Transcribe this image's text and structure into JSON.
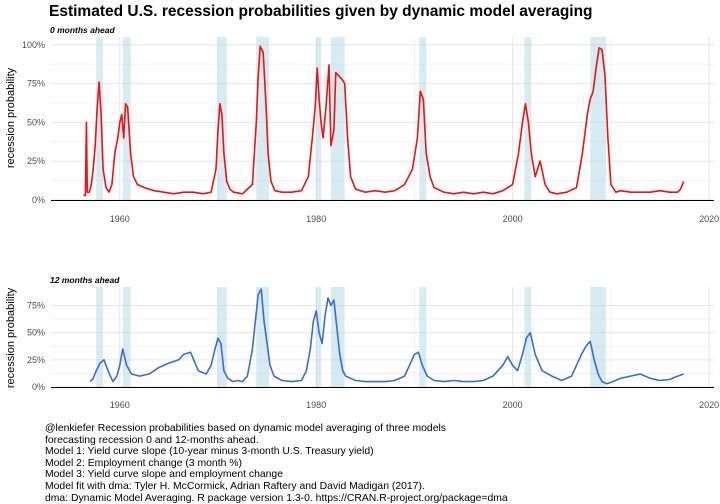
{
  "title": "Estimated U.S. recession probabilities given by dynamic model averaging",
  "caption": [
    "@lenkiefer Recession probabilities based on dynamic model averaging of three models",
    "forecasting recession 0 and 12-months ahead.",
    "Model 1: Yield curve slope (10-year minus 3-month U.S. Treasury yield)",
    "Model 2: Employment change (3 month %)",
    "Model 3: Yield curve slope and employment change",
    "Model fit with dma: Tyler H. McCormick, Adrian Raftery and David Madigan (2017).",
    "dma: Dynamic Model Averaging. R package version 1.3-0. https://CRAN.R-project.org/package=dma"
  ],
  "chart_data": [
    {
      "type": "line",
      "subtitle": "0 months ahead",
      "xlabel": "",
      "ylabel": "recession probability",
      "xlim": [
        1953,
        2020.5
      ],
      "ylim": [
        0,
        1.05
      ],
      "xticks": [
        1960,
        1980,
        2000,
        2020
      ],
      "yticks": [
        0,
        0.25,
        0.5,
        0.75,
        1.0
      ],
      "ytick_labels": [
        "0%",
        "25%",
        "50%",
        "75%",
        "100%"
      ],
      "grid": true,
      "color": "#ee1111",
      "recession_shading": [
        [
          1957.6,
          1958.3
        ],
        [
          1960.3,
          1961.1
        ],
        [
          1969.9,
          1970.9
        ],
        [
          1973.9,
          1975.2
        ],
        [
          1980.0,
          1980.5
        ],
        [
          1981.5,
          1982.9
        ],
        [
          1990.5,
          1991.2
        ],
        [
          2001.2,
          2001.9
        ],
        [
          2007.9,
          2009.5
        ]
      ],
      "series": [
        {
          "x": [
            1956.3,
            1956.5,
            1956.6,
            1956.7,
            1956.9,
            1957.1,
            1957.3,
            1957.5,
            1957.7,
            1957.9,
            1958.1,
            1958.3,
            1958.6,
            1958.9,
            1959.2,
            1959.5,
            1959.8,
            1960.0,
            1960.2,
            1960.4,
            1960.6,
            1960.8,
            1961.1,
            1961.4,
            1961.8,
            1962.5,
            1963.5,
            1964.5,
            1965.5,
            1966.5,
            1967.5,
            1968.5,
            1969.3,
            1969.8,
            1970.0,
            1970.2,
            1970.4,
            1970.6,
            1970.9,
            1971.2,
            1971.6,
            1972.5,
            1973.5,
            1973.9,
            1974.1,
            1974.3,
            1974.6,
            1974.9,
            1975.1,
            1975.4,
            1975.8,
            1976.5,
            1977.5,
            1978.5,
            1979.2,
            1979.6,
            1979.9,
            1980.1,
            1980.3,
            1980.5,
            1980.7,
            1981.0,
            1981.3,
            1981.5,
            1981.8,
            1982.0,
            1982.3,
            1982.6,
            1982.9,
            1983.2,
            1983.5,
            1984.0,
            1985.0,
            1986.0,
            1987.0,
            1988.0,
            1989.0,
            1989.8,
            1990.3,
            1990.6,
            1990.9,
            1991.2,
            1991.6,
            1992.0,
            1993.0,
            1994.0,
            1995.0,
            1996.0,
            1997.0,
            1998.0,
            1999.0,
            2000.0,
            2000.6,
            2001.0,
            2001.3,
            2001.6,
            2001.9,
            2002.3,
            2002.8,
            2003.3,
            2003.8,
            2004.5,
            2005.5,
            2006.5,
            2007.1,
            2007.6,
            2007.9,
            2008.2,
            2008.5,
            2008.8,
            2009.1,
            2009.4,
            2009.7,
            2010.0,
            2010.5,
            2011.0,
            2012.0,
            2013.0,
            2014.0,
            2015.0,
            2016.0,
            2016.8,
            2017.1,
            2017.4
          ],
          "y": [
            0.03,
            0.03,
            0.5,
            0.05,
            0.05,
            0.1,
            0.2,
            0.35,
            0.6,
            0.76,
            0.55,
            0.2,
            0.08,
            0.05,
            0.1,
            0.3,
            0.4,
            0.5,
            0.55,
            0.4,
            0.62,
            0.6,
            0.3,
            0.15,
            0.1,
            0.08,
            0.06,
            0.05,
            0.04,
            0.05,
            0.05,
            0.04,
            0.05,
            0.2,
            0.45,
            0.62,
            0.55,
            0.3,
            0.12,
            0.07,
            0.05,
            0.04,
            0.1,
            0.5,
            0.8,
            0.99,
            0.95,
            0.6,
            0.3,
            0.12,
            0.06,
            0.05,
            0.05,
            0.06,
            0.15,
            0.4,
            0.6,
            0.85,
            0.65,
            0.5,
            0.4,
            0.6,
            0.87,
            0.35,
            0.45,
            0.82,
            0.8,
            0.78,
            0.75,
            0.4,
            0.15,
            0.07,
            0.05,
            0.06,
            0.05,
            0.06,
            0.1,
            0.2,
            0.4,
            0.7,
            0.65,
            0.3,
            0.15,
            0.08,
            0.05,
            0.04,
            0.05,
            0.04,
            0.05,
            0.04,
            0.06,
            0.1,
            0.3,
            0.5,
            0.62,
            0.5,
            0.3,
            0.15,
            0.25,
            0.1,
            0.05,
            0.04,
            0.05,
            0.08,
            0.3,
            0.55,
            0.65,
            0.7,
            0.85,
            0.98,
            0.97,
            0.8,
            0.4,
            0.1,
            0.05,
            0.06,
            0.05,
            0.05,
            0.05,
            0.06,
            0.05,
            0.05,
            0.07,
            0.12
          ]
        }
      ]
    },
    {
      "type": "line",
      "subtitle": "12 months ahead",
      "xlabel": "",
      "ylabel": "recession probability",
      "xlim": [
        1953,
        2020.5
      ],
      "ylim": [
        0,
        0.92
      ],
      "xticks": [
        1960,
        1980,
        2000,
        2020
      ],
      "yticks": [
        0,
        0.25,
        0.5,
        0.75
      ],
      "ytick_labels": [
        "0%",
        "25%",
        "50%",
        "75%"
      ],
      "grid": true,
      "color": "#3a6bd8",
      "recession_shading": [
        [
          1957.6,
          1958.3
        ],
        [
          1960.3,
          1961.1
        ],
        [
          1969.9,
          1970.9
        ],
        [
          1973.9,
          1975.2
        ],
        [
          1980.0,
          1980.5
        ],
        [
          1981.5,
          1982.9
        ],
        [
          1990.5,
          1991.2
        ],
        [
          2001.2,
          2001.9
        ],
        [
          2007.9,
          2009.5
        ]
      ],
      "series": [
        {
          "x": [
            1957.0,
            1957.3,
            1957.6,
            1958.0,
            1958.4,
            1958.8,
            1959.3,
            1959.7,
            1960.0,
            1960.3,
            1960.7,
            1961.2,
            1962.0,
            1963.0,
            1964.0,
            1965.0,
            1966.0,
            1966.5,
            1967.2,
            1968.0,
            1968.8,
            1969.3,
            1969.7,
            1970.0,
            1970.3,
            1970.6,
            1971.0,
            1971.5,
            1972.0,
            1972.5,
            1973.0,
            1973.5,
            1973.8,
            1974.1,
            1974.4,
            1974.7,
            1975.0,
            1975.3,
            1975.7,
            1976.5,
            1977.5,
            1978.5,
            1979.0,
            1979.4,
            1979.7,
            1980.0,
            1980.3,
            1980.6,
            1980.9,
            1981.2,
            1981.5,
            1981.8,
            1982.1,
            1982.4,
            1982.7,
            1983.0,
            1983.5,
            1984.0,
            1985.0,
            1986.0,
            1987.0,
            1988.0,
            1989.0,
            1989.5,
            1990.0,
            1990.4,
            1990.8,
            1991.3,
            1992.0,
            1993.0,
            1994.0,
            1995.0,
            1996.0,
            1997.0,
            1998.0,
            1999.0,
            1999.5,
            2000.0,
            2000.5,
            2001.0,
            2001.4,
            2001.8,
            2002.3,
            2003.0,
            2004.0,
            2005.0,
            2006.0,
            2006.5,
            2007.0,
            2007.5,
            2007.9,
            2008.3,
            2008.7,
            2009.1,
            2009.6,
            2010.2,
            2011.0,
            2012.0,
            2013.0,
            2014.0,
            2015.0,
            2016.0,
            2016.8,
            2017.4
          ],
          "y": [
            0.05,
            0.08,
            0.15,
            0.22,
            0.25,
            0.15,
            0.05,
            0.1,
            0.2,
            0.35,
            0.2,
            0.12,
            0.1,
            0.12,
            0.18,
            0.22,
            0.25,
            0.3,
            0.32,
            0.15,
            0.12,
            0.2,
            0.35,
            0.45,
            0.4,
            0.15,
            0.08,
            0.05,
            0.06,
            0.05,
            0.1,
            0.35,
            0.6,
            0.85,
            0.9,
            0.6,
            0.4,
            0.2,
            0.1,
            0.06,
            0.05,
            0.06,
            0.15,
            0.35,
            0.6,
            0.7,
            0.5,
            0.4,
            0.65,
            0.82,
            0.75,
            0.8,
            0.55,
            0.3,
            0.15,
            0.1,
            0.08,
            0.06,
            0.05,
            0.05,
            0.05,
            0.06,
            0.1,
            0.2,
            0.3,
            0.32,
            0.2,
            0.1,
            0.06,
            0.05,
            0.06,
            0.05,
            0.05,
            0.06,
            0.1,
            0.2,
            0.28,
            0.2,
            0.15,
            0.3,
            0.45,
            0.5,
            0.3,
            0.15,
            0.1,
            0.06,
            0.1,
            0.2,
            0.3,
            0.38,
            0.42,
            0.25,
            0.12,
            0.05,
            0.03,
            0.05,
            0.08,
            0.1,
            0.12,
            0.08,
            0.06,
            0.07,
            0.1,
            0.12
          ]
        }
      ]
    }
  ]
}
